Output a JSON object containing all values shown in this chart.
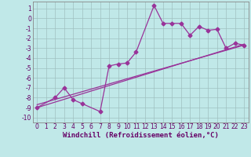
{
  "xlabel": "Windchill (Refroidissement éolien,°C)",
  "bg_color": "#c0e8e8",
  "line_color": "#993399",
  "marker": "D",
  "markersize": 2.5,
  "linewidth": 0.9,
  "xlim": [
    -0.5,
    23.5
  ],
  "ylim": [
    -10.5,
    1.7
  ],
  "yticks": [
    1,
    0,
    -1,
    -2,
    -3,
    -4,
    -5,
    -6,
    -7,
    -8,
    -9,
    -10
  ],
  "xticks": [
    0,
    1,
    2,
    3,
    4,
    5,
    6,
    7,
    8,
    9,
    10,
    11,
    12,
    13,
    14,
    15,
    16,
    17,
    18,
    19,
    20,
    21,
    22,
    23
  ],
  "series1_x": [
    0,
    2,
    3,
    4,
    5,
    7,
    8,
    9,
    10,
    11,
    13,
    14,
    15,
    16,
    17,
    18,
    19,
    20,
    21,
    22,
    23
  ],
  "series1_y": [
    -9.0,
    -8.0,
    -7.0,
    -8.2,
    -8.6,
    -9.4,
    -4.8,
    -4.6,
    -4.5,
    -3.4,
    1.3,
    -0.5,
    -0.5,
    -0.5,
    -1.7,
    -0.8,
    -1.2,
    -1.1,
    -3.0,
    -2.5,
    -2.7
  ],
  "series2_x": [
    0,
    23
  ],
  "series2_y": [
    -9.0,
    -2.6
  ],
  "series3_x": [
    0,
    23
  ],
  "series3_y": [
    -8.7,
    -2.7
  ],
  "grid_color": "#a0c0c0",
  "tick_fontsize": 5.5,
  "xlabel_fontsize": 6.5,
  "tick_color": "#660066",
  "spine_color": "#888888"
}
